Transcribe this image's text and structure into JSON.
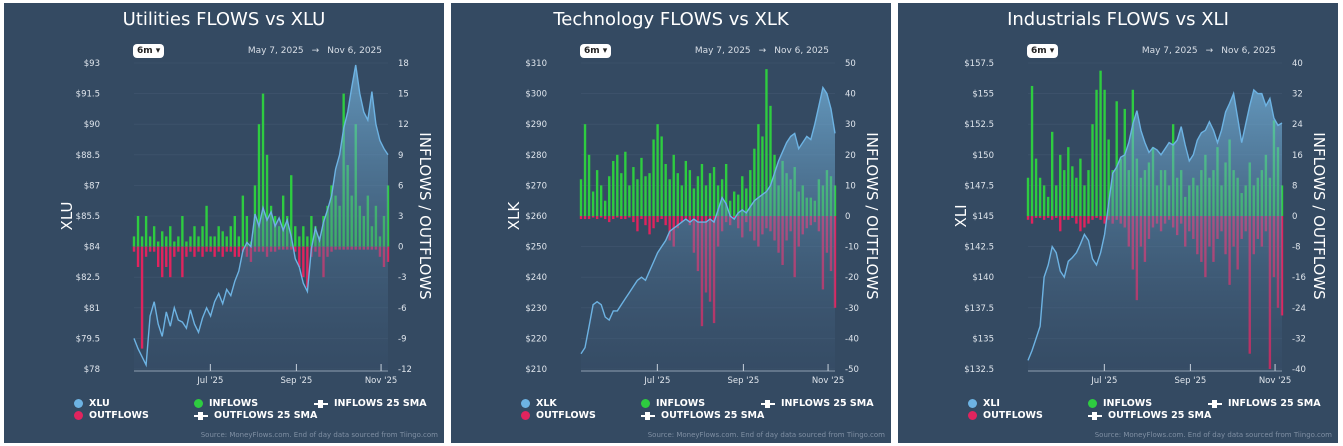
{
  "colors": {
    "panel_bg": "#344a62",
    "price": "#6db3e3",
    "inflows": "#2ecc40",
    "outflows": "#e0245e",
    "grid": "#40566f"
  },
  "range_button": "6m",
  "date_start": "May 7, 2025",
  "date_sep": "→",
  "date_end": "Nov 6, 2025",
  "footer": "Source: MoneyFlows.com. End of day data sourced from Tiingo.com",
  "x_ticks": [
    {
      "label": "Jul '25",
      "date": "2025-07-01"
    },
    {
      "label": "Sep '25",
      "date": "2025-09-01"
    },
    {
      "label": "Nov '25",
      "date": "2025-11-01"
    }
  ],
  "chart_data": [
    {
      "type": "bar+area",
      "title": "Utilities FLOWS vs XLU",
      "ylabel": "XLU",
      "y2label": "INFLOWS / OUTFLOWS",
      "xlim": [
        "2025-05-07",
        "2025-11-06"
      ],
      "ylim": [
        78,
        93
      ],
      "y2lim": [
        -12,
        18
      ],
      "yticks": [
        "$78",
        "$79.5",
        "$81",
        "$82.5",
        "$84",
        "$85.5",
        "$87",
        "$88.5",
        "$90",
        "$91.5",
        "$93"
      ],
      "y2ticks": [
        "-12",
        "-9",
        "-6",
        "-3",
        "0",
        "3",
        "6",
        "9",
        "12",
        "15",
        "18"
      ],
      "legend": [
        "XLU",
        "INFLOWS",
        "INFLOWS 25 SMA",
        "OUTFLOWS",
        "OUTFLOWS 25 SMA"
      ],
      "price": [
        79.5,
        79.0,
        78.6,
        78.2,
        80.6,
        81.3,
        80.2,
        79.6,
        80.8,
        80.1,
        81.0,
        80.4,
        80.3,
        80.0,
        80.9,
        80.2,
        79.8,
        80.5,
        81.0,
        80.6,
        81.3,
        81.7,
        81.2,
        81.9,
        81.6,
        82.3,
        82.8,
        83.8,
        84.2,
        84.0,
        85.6,
        85.0,
        85.9,
        85.3,
        85.7,
        85.0,
        85.4,
        84.8,
        85.3,
        84.5,
        83.4,
        83.0,
        82.2,
        81.8,
        83.9,
        84.9,
        84.3,
        85.2,
        85.8,
        86.5,
        87.8,
        88.5,
        89.8,
        90.6,
        91.8,
        92.9,
        91.5,
        90.6,
        90.2,
        91.6,
        90.0,
        89.2,
        88.8,
        88.5
      ],
      "inflows": [
        1,
        3,
        1,
        3,
        1,
        2,
        0.5,
        1.5,
        1,
        2,
        0.5,
        1,
        3,
        0.5,
        1,
        2,
        1,
        2,
        4,
        1,
        1,
        2,
        1.5,
        1,
        2,
        3,
        1,
        5,
        3,
        0.5,
        6,
        12,
        15,
        9,
        4,
        3,
        2,
        5,
        3,
        7,
        2,
        1,
        2,
        1,
        3,
        2,
        1,
        3,
        4,
        6,
        5,
        4,
        15,
        8,
        5,
        12,
        4,
        3,
        5,
        2,
        4,
        1,
        3,
        6
      ],
      "outflows": [
        -0.5,
        -2,
        -10,
        -1,
        -0.5,
        -0.5,
        -2,
        -3,
        -2,
        -3,
        -1,
        -0.5,
        -3,
        -1,
        -0.5,
        -1,
        -0.5,
        -1,
        -0.5,
        -0.5,
        -1,
        -0.5,
        -1,
        -0.5,
        -0.5,
        -1,
        -1,
        -0.5,
        -1,
        -1.5,
        -0.5,
        -0.5,
        -0.5,
        -1,
        -0.5,
        -0.5,
        -0.3,
        -0.3,
        -0.3,
        -0.3,
        -0.5,
        -2,
        -3,
        -4,
        -1,
        -0.5,
        -1,
        -3,
        -1,
        -0.5,
        -0.3,
        -0.3,
        -0.3,
        -0.3,
        -0.3,
        -0.3,
        -0.3,
        -0.3,
        -0.3,
        -0.3,
        -0.3,
        -1,
        -2,
        -1.5
      ]
    },
    {
      "type": "bar+area",
      "title": "Technology FLOWS vs XLK",
      "ylabel": "XLK",
      "y2label": "INFLOWS / OUTFLOWS",
      "xlim": [
        "2025-05-07",
        "2025-11-06"
      ],
      "ylim": [
        210,
        310
      ],
      "y2lim": [
        -50,
        50
      ],
      "yticks": [
        "$210",
        "$220",
        "$230",
        "$240",
        "$250",
        "$260",
        "$270",
        "$280",
        "$290",
        "$300",
        "$310"
      ],
      "y2ticks": [
        "-50",
        "-40",
        "-30",
        "-20",
        "-10",
        "0",
        "10",
        "20",
        "30",
        "40",
        "50"
      ],
      "legend": [
        "XLK",
        "INFLOWS",
        "INFLOWS 25 SMA",
        "OUTFLOWS",
        "OUTFLOWS 25 SMA"
      ],
      "price": [
        215,
        217,
        224,
        231,
        232,
        231,
        227,
        226,
        229,
        229,
        231,
        233,
        235,
        237,
        239,
        240,
        239,
        242,
        245,
        248,
        250,
        252,
        255,
        256,
        257,
        258,
        259,
        258,
        259,
        258,
        258,
        258,
        259,
        258,
        262,
        266,
        264,
        260,
        259,
        261,
        262,
        261,
        263,
        265,
        266,
        267,
        268,
        270,
        274,
        278,
        281,
        284,
        286,
        287,
        282,
        284,
        286,
        285,
        290,
        296,
        302,
        300,
        295,
        287
      ],
      "inflows": [
        12,
        30,
        20,
        8,
        15,
        10,
        5,
        13,
        18,
        20,
        14,
        21,
        10,
        16,
        12,
        19,
        13,
        14,
        25,
        30,
        26,
        17,
        12,
        20,
        14,
        10,
        18,
        15,
        9,
        13,
        17,
        10,
        14,
        16,
        10,
        12,
        17,
        5,
        8,
        7,
        13,
        9,
        15,
        22,
        30,
        26,
        48,
        36,
        20,
        10,
        18,
        14,
        12,
        16,
        8,
        10,
        6,
        6,
        5,
        12,
        10,
        15,
        13,
        10
      ],
      "outflows": [
        -1,
        -1,
        -1,
        -0.5,
        -1,
        -0.5,
        -1,
        -2,
        -1,
        -0.5,
        -1,
        -1,
        -0.5,
        -2,
        -5,
        -1,
        -3,
        -6,
        -4,
        -2,
        -1,
        -3,
        -8,
        -10,
        -4,
        -2,
        -1,
        -3,
        -12,
        -18,
        -36,
        -25,
        -28,
        -35,
        -10,
        -5,
        -2,
        -3,
        -1,
        -4,
        -7,
        -2,
        -5,
        -8,
        -10,
        -6,
        -4,
        -5,
        -8,
        -12,
        -16,
        -8,
        -5,
        -20,
        -10,
        -6,
        -4,
        -3,
        -2,
        -5,
        -24,
        -12,
        -18,
        -30
      ]
    },
    {
      "type": "bar+area",
      "title": "Industrials FLOWS vs XLI",
      "ylabel": "XLI",
      "y2label": "INFLOWS / OUTFLOWS",
      "xlim": [
        "2025-05-07",
        "2025-11-06"
      ],
      "ylim": [
        132.5,
        157.5
      ],
      "y2lim": [
        -40,
        40
      ],
      "yticks": [
        "$132.5",
        "$135",
        "$137.5",
        "$140",
        "$142.5",
        "$145",
        "$147.5",
        "$150",
        "$152.5",
        "$155",
        "$157.5"
      ],
      "y2ticks": [
        "-40",
        "-32",
        "-24",
        "-16",
        "-8",
        "0",
        "8",
        "16",
        "24",
        "32",
        "40"
      ],
      "legend": [
        "XLI",
        "INFLOWS",
        "INFLOWS 25 SMA",
        "OUTFLOWS",
        "OUTFLOWS 25 SMA"
      ],
      "price": [
        133.2,
        134,
        135,
        136,
        140,
        141,
        142.5,
        142,
        140.5,
        140,
        141.3,
        141.6,
        142,
        142.7,
        143.5,
        143,
        141.5,
        141,
        142,
        143.5,
        146,
        148.5,
        149,
        149.8,
        150,
        151,
        152.5,
        153.6,
        152,
        151,
        150.2,
        150.6,
        150.4,
        150,
        150.5,
        151,
        150.8,
        151.2,
        152.3,
        150.8,
        149.5,
        150,
        151.2,
        151.8,
        152,
        152.7,
        152,
        151,
        152,
        153.5,
        154.2,
        155,
        153,
        151,
        152.5,
        154,
        155.3,
        155,
        155,
        154,
        154.6,
        153,
        152.4,
        152.6
      ],
      "inflows": [
        10,
        34,
        15,
        10,
        8,
        5,
        22,
        8,
        16,
        12,
        18,
        13,
        10,
        15,
        8,
        12,
        24,
        33,
        38,
        33,
        20,
        12,
        30,
        15,
        28,
        12,
        33,
        15,
        10,
        12,
        14,
        18,
        8,
        12,
        12,
        8,
        24,
        10,
        12,
        5,
        8,
        10,
        8,
        12,
        16,
        10,
        12,
        18,
        8,
        14,
        20,
        12,
        10,
        6,
        8,
        14,
        8,
        10,
        12,
        16,
        10,
        25,
        18,
        8
      ],
      "outflows": [
        -1,
        -2,
        -0.5,
        -0.5,
        -1,
        -0.5,
        -1,
        -0.5,
        -4,
        -1,
        -1,
        -0.5,
        -2,
        -4,
        -3,
        -2,
        -1,
        -0.5,
        -1,
        -2,
        -1,
        -2,
        -1,
        -2,
        -3,
        -8,
        -14,
        -22,
        -8,
        -12,
        -6,
        -3,
        -2,
        -4,
        -2,
        -1,
        -3,
        -5,
        -2,
        -8,
        -4,
        -6,
        -10,
        -12,
        -16,
        -8,
        -12,
        -6,
        -4,
        -10,
        -18,
        -8,
        -14,
        -6,
        -4,
        -36,
        -10,
        -6,
        -8,
        -4,
        -40,
        -16,
        -24,
        -26
      ]
    }
  ]
}
